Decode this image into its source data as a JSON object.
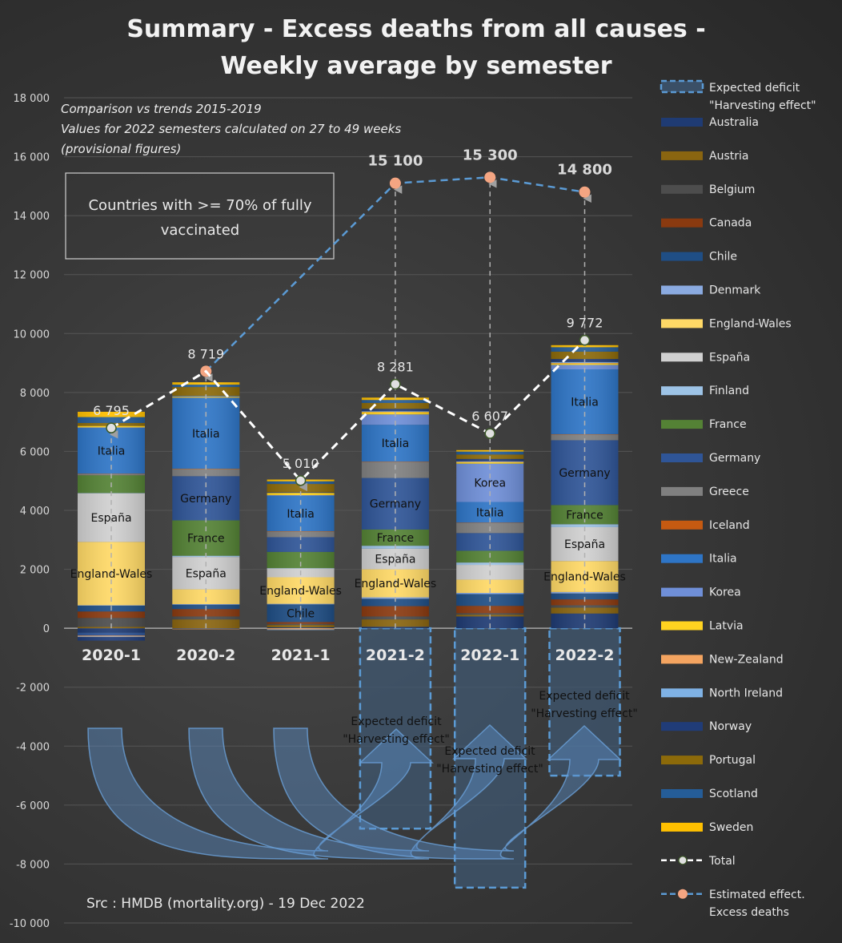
{
  "chart_data": {
    "type": "bar",
    "subtype": "stacked-bar-with-lines",
    "title": [
      "Summary - Excess deaths from all causes -",
      "Weekly average by semester"
    ],
    "notes": [
      "Comparison vs trends 2015-2019",
      "Values for 2022 semesters calculated on 27 to 49 weeks",
      "(provisional figures)"
    ],
    "annotation_box": [
      "Countries with >= 70% of fully",
      "vaccinated"
    ],
    "source": "Src : HMDB (mortality.org) - 19 Dec 2022",
    "ylim": [
      -10000,
      18000
    ],
    "yticks": [
      18000,
      16000,
      14000,
      12000,
      10000,
      8000,
      6000,
      4000,
      2000,
      0,
      -2000,
      -4000,
      -6000,
      -8000,
      -10000
    ],
    "ytick_labels": [
      "18 000",
      "16 000",
      "14 000",
      "12 000",
      "10 000",
      "8 000",
      "6 000",
      "4 000",
      "2 000",
      "0",
      "-2 000",
      "-4 000",
      "-6 000",
      "-8 000",
      "-10 000"
    ],
    "grid": true,
    "legend_position": "right",
    "categories": [
      "2020-1",
      "2020-2",
      "2021-1",
      "2021-2",
      "2022-1",
      "2022-2"
    ],
    "countries": [
      {
        "name": "Australia",
        "color": "#1f3b73"
      },
      {
        "name": "Austria",
        "color": "#8a6510"
      },
      {
        "name": "Belgium",
        "color": "#4d4d4d"
      },
      {
        "name": "Canada",
        "color": "#8a3a10"
      },
      {
        "name": "Chile",
        "color": "#1f4e85"
      },
      {
        "name": "Denmark",
        "color": "#8aaae0"
      },
      {
        "name": "England-Wales",
        "color": "#ffd966"
      },
      {
        "name": "España",
        "color": "#d0d0d0"
      },
      {
        "name": "Finland",
        "color": "#9dc3e6"
      },
      {
        "name": "France",
        "color": "#548235"
      },
      {
        "name": "Germany",
        "color": "#2f5597"
      },
      {
        "name": "Greece",
        "color": "#808080"
      },
      {
        "name": "Iceland",
        "color": "#c55a11"
      },
      {
        "name": "Italia",
        "color": "#2e75c6"
      },
      {
        "name": "Korea",
        "color": "#6f8fd8"
      },
      {
        "name": "Latvia",
        "color": "#ffd320"
      },
      {
        "name": "New-Zealand",
        "color": "#f4a460"
      },
      {
        "name": "North Ireland",
        "color": "#7fb2e5"
      },
      {
        "name": "Norway",
        "color": "#203c78"
      },
      {
        "name": "Portugal",
        "color": "#8c6a0a"
      },
      {
        "name": "Scotland",
        "color": "#255d98"
      },
      {
        "name": "Sweden",
        "color": "#ffc000"
      }
    ],
    "segment_labels": {
      "2020-1": [
        "England-Wales",
        "España",
        "Italia"
      ],
      "2020-2": [
        "España",
        "France",
        "Germany",
        "Italia"
      ],
      "2021-1": [
        "Chile",
        "England-Wales",
        "Italia"
      ],
      "2021-2": [
        "England-Wales",
        "España",
        "France",
        "Germany",
        "Italia"
      ],
      "2022-1": [
        "Italia",
        "Korea"
      ],
      "2022-2": [
        "England-Wales",
        "España",
        "France",
        "Germany",
        "Italia"
      ]
    },
    "series": [
      {
        "name": "Australia",
        "values": [
          -150,
          -20,
          30,
          50,
          400,
          500
        ]
      },
      {
        "name": "Austria",
        "values": [
          50,
          300,
          80,
          250,
          60,
          200
        ]
      },
      {
        "name": "Belgium",
        "values": [
          300,
          100,
          40,
          100,
          50,
          80
        ]
      },
      {
        "name": "Canada",
        "values": [
          220,
          250,
          60,
          350,
          250,
          200
        ]
      },
      {
        "name": "Chile",
        "values": [
          200,
          150,
          600,
          250,
          400,
          200
        ]
      },
      {
        "name": "Denmark",
        "values": [
          10,
          20,
          20,
          50,
          40,
          50
        ]
      },
      {
        "name": "England-Wales",
        "values": [
          2150,
          500,
          900,
          950,
          450,
          1050
        ]
      },
      {
        "name": "España",
        "values": [
          1650,
          1100,
          300,
          700,
          500,
          1150
        ]
      },
      {
        "name": "Finland",
        "values": [
          10,
          40,
          10,
          100,
          80,
          100
        ]
      },
      {
        "name": "France",
        "values": [
          600,
          1200,
          550,
          550,
          400,
          650
        ]
      },
      {
        "name": "Germany",
        "values": [
          -100,
          1500,
          500,
          1750,
          600,
          2200
        ]
      },
      {
        "name": "Greece",
        "values": [
          50,
          250,
          200,
          550,
          350,
          200
        ]
      },
      {
        "name": "Iceland",
        "values": [
          5,
          5,
          5,
          5,
          5,
          5
        ]
      },
      {
        "name": "Italia",
        "values": [
          1550,
          2400,
          1200,
          1250,
          700,
          2200
        ]
      },
      {
        "name": "Korea",
        "values": [
          20,
          10,
          20,
          350,
          1300,
          150
        ]
      },
      {
        "name": "Latvia",
        "values": [
          50,
          30,
          80,
          80,
          50,
          50
        ]
      },
      {
        "name": "New-Zealand",
        "values": [
          -30,
          -10,
          -40,
          10,
          10,
          20
        ]
      },
      {
        "name": "North Ireland",
        "values": [
          -20,
          20,
          -20,
          20,
          20,
          30
        ]
      },
      {
        "name": "Norway",
        "values": [
          -120,
          10,
          20,
          80,
          80,
          100
        ]
      },
      {
        "name": "Portugal",
        "values": [
          100,
          300,
          280,
          200,
          150,
          250
        ]
      },
      {
        "name": "Scotland",
        "values": [
          200,
          80,
          90,
          100,
          100,
          150
        ]
      },
      {
        "name": "Sweden",
        "values": [
          180,
          80,
          60,
          80,
          50,
          70
        ]
      }
    ],
    "total": {
      "name": "Total",
      "values": [
        6795,
        8719,
        5010,
        8281,
        6607,
        9772
      ],
      "labels": [
        "6 795",
        "8 719",
        "5 010",
        "8 281",
        "6 607",
        "9 772"
      ],
      "color": "#ffffff"
    },
    "estimated_effect": {
      "name": "Estimated effect. Excess deaths",
      "categories": [
        "2020-2",
        "2021-2",
        "2022-1",
        "2022-2"
      ],
      "values": [
        8719,
        15100,
        15300,
        14800
      ],
      "labels": [
        "",
        "15 100",
        "15 300",
        "14 800"
      ],
      "color": "#5b9bd5",
      "marker_color": "#f4a582"
    },
    "expected_deficit": {
      "name": "Expected deficit \"Harvesting effect\"",
      "categories": [
        "2021-2",
        "2022-1",
        "2022-2"
      ],
      "values": [
        -6800,
        -8800,
        -5000
      ],
      "label": [
        "Expected deficit",
        "\"Harvesting effect\""
      ],
      "color": "#5b9bd5"
    }
  },
  "legend": {
    "deficit_label": [
      "Expected deficit",
      "\"Harvesting effect\""
    ],
    "total_label": "Total",
    "estimated_label": [
      "Estimated effect.",
      "Excess deaths"
    ]
  }
}
